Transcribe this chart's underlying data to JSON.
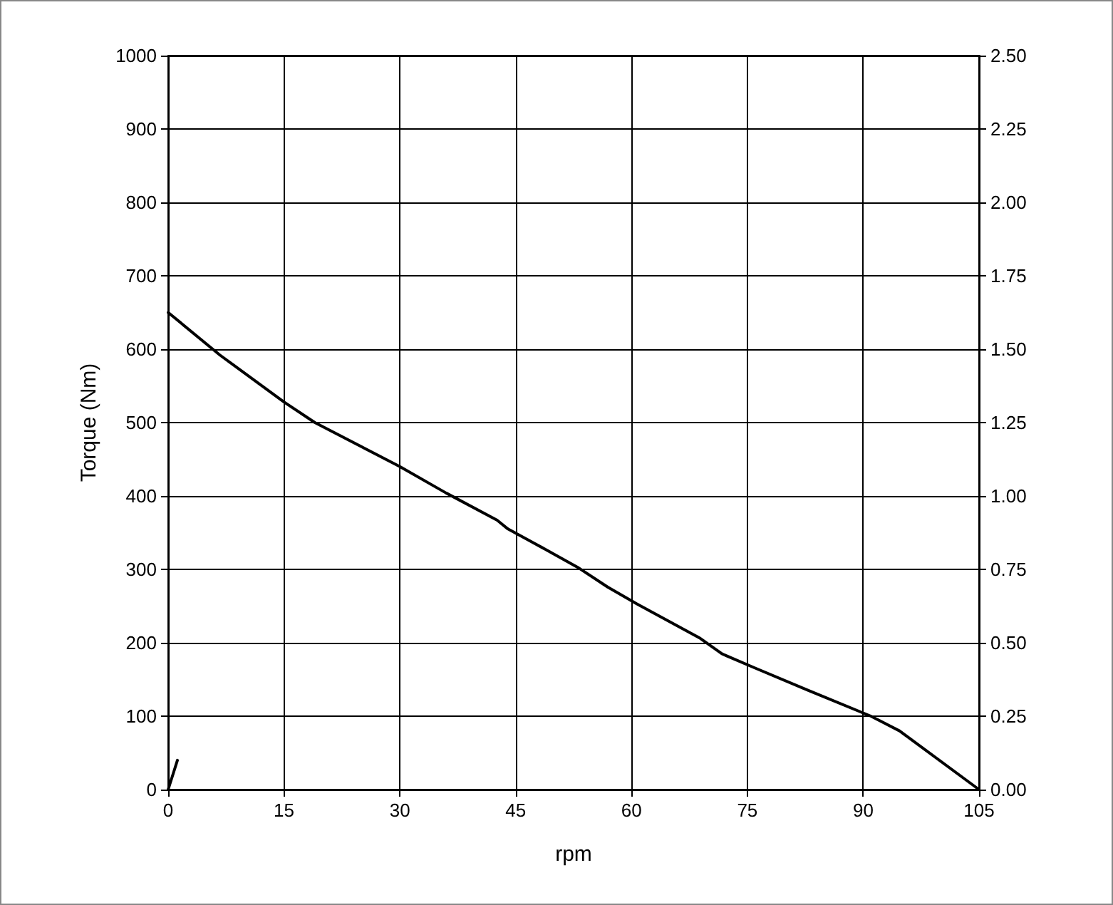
{
  "chart_data": {
    "type": "line",
    "xlabel": "rpm",
    "ylabel": "Torque (Nm)",
    "xlim": [
      0,
      105
    ],
    "xticks": [
      0,
      15,
      30,
      45,
      60,
      75,
      90,
      105
    ],
    "ylim": [
      0,
      1000
    ],
    "yticks": [
      0,
      100,
      200,
      300,
      400,
      500,
      600,
      700,
      800,
      900,
      1000
    ],
    "y2lim": [
      0,
      2.5
    ],
    "y2ticks": [
      {
        "value": 0,
        "label": "0.00"
      },
      {
        "value": 0.25,
        "label": "0.25"
      },
      {
        "value": 0.5,
        "label": "0.50"
      },
      {
        "value": 0.75,
        "label": "0.75"
      },
      {
        "value": 1,
        "label": "1.00"
      },
      {
        "value": 1.25,
        "label": "1.25"
      },
      {
        "value": 1.5,
        "label": "1.50"
      },
      {
        "value": 1.75,
        "label": "1.75"
      },
      {
        "value": 2,
        "label": "2.00"
      },
      {
        "value": 2.25,
        "label": "2.25"
      },
      {
        "value": 2.5,
        "label": "2.50"
      }
    ],
    "grid": true,
    "marker": "none",
    "line_style": "solid",
    "series": [
      {
        "color": "#000000",
        "x": [
          0,
          6.7,
          15,
          19,
          30,
          36,
          42.6,
          44,
          48.9,
          53,
          56.9,
          60.7,
          68.9,
          71.7,
          75.9,
          82.9,
          91,
          94.7,
          105
        ],
        "values": [
          650,
          592,
          528,
          500,
          440,
          404,
          367,
          355,
          327,
          303,
          276,
          253,
          206,
          185,
          166,
          135,
          100,
          80,
          0
        ]
      },
      {
        "color": "#000000",
        "x": [
          0,
          1.2
        ],
        "values": [
          0,
          40
        ]
      }
    ]
  }
}
